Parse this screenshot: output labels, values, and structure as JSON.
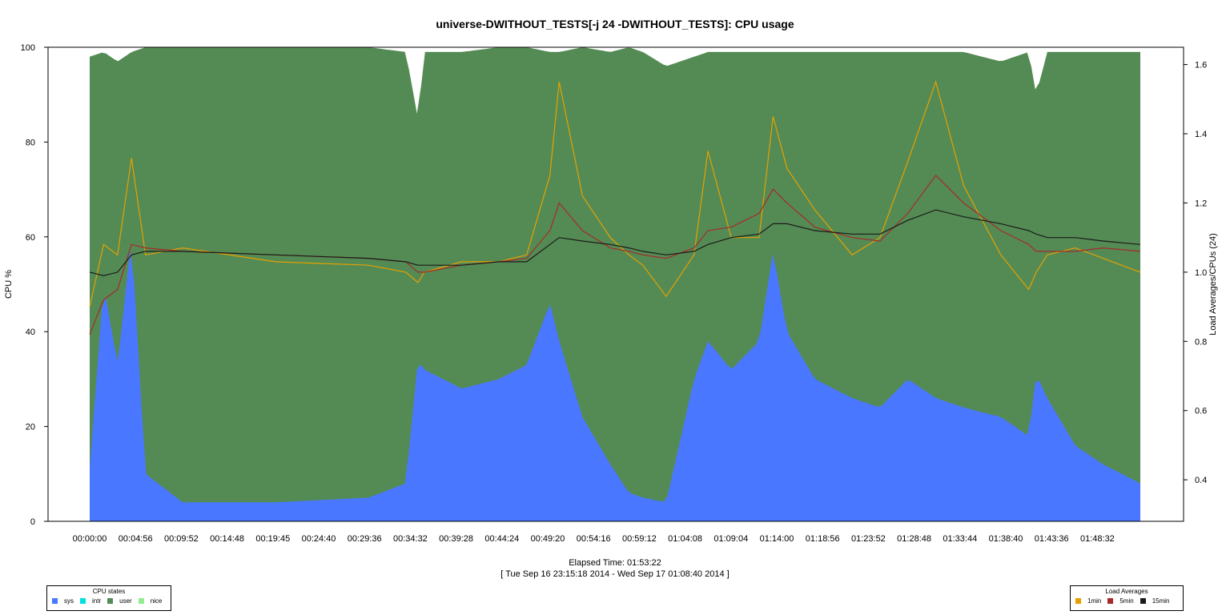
{
  "chart_data": {
    "type": "area",
    "title": "universe-DWITHOUT_TESTS[-j 24  -DWITHOUT_TESTS]: CPU usage",
    "xlabel": "Elapsed Time: 01:53:22",
    "xlabel2": "[ Tue Sep 16 23:15:18 2014 - Wed Sep 17 01:08:40 2014 ]",
    "ylabel": "CPU %",
    "y2label": "Load Averages/CPUs (24)",
    "ylim": [
      0,
      100
    ],
    "y2lim": [
      0.28,
      1.65
    ],
    "yticks": [
      "0",
      "20",
      "40",
      "60",
      "80",
      "100"
    ],
    "y2ticks": [
      "0.4",
      "0.6",
      "0.8",
      "1.0",
      "1.2",
      "1.4",
      "1.6"
    ],
    "xticks": [
      "00:00:00",
      "00:04:56",
      "00:09:52",
      "00:14:48",
      "00:19:45",
      "00:24:40",
      "00:29:36",
      "00:34:32",
      "00:39:28",
      "00:44:24",
      "00:49:20",
      "00:54:16",
      "00:59:12",
      "01:04:08",
      "01:09:04",
      "01:14:00",
      "01:18:56",
      "01:23:52",
      "01:28:48",
      "01:33:44",
      "01:38:40",
      "01:43:36",
      "01:48:32"
    ],
    "x_minutes": [
      0,
      1.5,
      3,
      4.5,
      6,
      10,
      20,
      30,
      34,
      35.3,
      36,
      40,
      44,
      47,
      49.5,
      50.5,
      53,
      56,
      58,
      59.5,
      62,
      65,
      66.5,
      69,
      72,
      73.5,
      75,
      78,
      82,
      85,
      88,
      91,
      94,
      98,
      101,
      101.8,
      103,
      106,
      109,
      113
    ],
    "sys": [
      11,
      50,
      33,
      60,
      10,
      4,
      4,
      5,
      8,
      34,
      32,
      28,
      30,
      33,
      46,
      38,
      22,
      12,
      6,
      5,
      4,
      30,
      38,
      32,
      38,
      57,
      40,
      30,
      26,
      24,
      30,
      26,
      24,
      22,
      18,
      31,
      26,
      16,
      12,
      8
    ],
    "busy": [
      98,
      99,
      97,
      99,
      100,
      100,
      100,
      100,
      99,
      85,
      99,
      99,
      100,
      100,
      99,
      99,
      100,
      99,
      100,
      99,
      96,
      98,
      99,
      99,
      99,
      99,
      99,
      99,
      99,
      99,
      99,
      99,
      99,
      97,
      99,
      90,
      99,
      99,
      99,
      99
    ],
    "series": [
      {
        "name": "1min",
        "color": "#E6A000",
        "values": [
          0.9,
          1.08,
          1.05,
          1.33,
          1.05,
          1.07,
          1.03,
          1.02,
          1.0,
          0.97,
          1.0,
          1.03,
          1.03,
          1.05,
          1.28,
          1.55,
          1.22,
          1.1,
          1.05,
          1.02,
          0.93,
          1.05,
          1.35,
          1.1,
          1.1,
          1.45,
          1.3,
          1.18,
          1.05,
          1.1,
          1.32,
          1.55,
          1.25,
          1.05,
          0.95,
          1.0,
          1.05,
          1.07,
          1.04,
          1.0
        ]
      },
      {
        "name": "5min",
        "color": "#A52A2A",
        "values": [
          0.82,
          0.92,
          0.95,
          1.08,
          1.07,
          1.06,
          1.05,
          1.04,
          1.03,
          1.0,
          1.0,
          1.02,
          1.03,
          1.04,
          1.12,
          1.2,
          1.12,
          1.07,
          1.06,
          1.05,
          1.04,
          1.07,
          1.12,
          1.13,
          1.17,
          1.24,
          1.2,
          1.13,
          1.1,
          1.09,
          1.17,
          1.28,
          1.2,
          1.12,
          1.08,
          1.06,
          1.06,
          1.06,
          1.07,
          1.06
        ]
      },
      {
        "name": "15min",
        "color": "#1a1a1a",
        "values": [
          1.0,
          0.99,
          1.0,
          1.05,
          1.06,
          1.06,
          1.05,
          1.04,
          1.03,
          1.02,
          1.02,
          1.02,
          1.03,
          1.03,
          1.08,
          1.1,
          1.09,
          1.08,
          1.07,
          1.06,
          1.05,
          1.06,
          1.08,
          1.1,
          1.11,
          1.14,
          1.14,
          1.12,
          1.11,
          1.11,
          1.15,
          1.18,
          1.16,
          1.14,
          1.12,
          1.11,
          1.1,
          1.1,
          1.09,
          1.08
        ]
      }
    ],
    "cpu_states": {
      "title": "CPU states",
      "items": [
        {
          "name": "sys",
          "color": "#4A77FF"
        },
        {
          "name": "intr",
          "color": "#00E0E0"
        },
        {
          "name": "user",
          "color": "#548B54"
        },
        {
          "name": "nice",
          "color": "#90EE90"
        }
      ]
    },
    "load_averages": {
      "title": "Load Averages",
      "items": [
        {
          "name": "1min",
          "color": "#E6A000"
        },
        {
          "name": "5min",
          "color": "#A52A2A"
        },
        {
          "name": "15min",
          "color": "#1a1a1a"
        }
      ]
    }
  }
}
